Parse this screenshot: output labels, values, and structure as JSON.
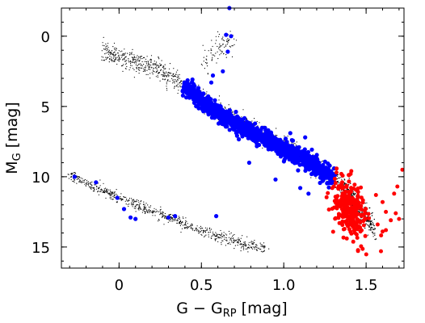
{
  "chart_data": {
    "type": "scatter",
    "xlabel_main": "G − G",
    "xlabel_sub": "RP",
    "xlabel_unit": " [mag]",
    "ylabel_main": "M",
    "ylabel_sub": "G",
    "ylabel_unit": " [mag]",
    "xlim": [
      -0.35,
      1.73
    ],
    "ylim": [
      16.5,
      -2.0
    ],
    "y_inverted": true,
    "x_ticks": [
      {
        "value": 0,
        "label": "0"
      },
      {
        "value": 0.5,
        "label": "0.5"
      },
      {
        "value": 1.0,
        "label": "1.0"
      },
      {
        "value": 1.5,
        "label": "1.5"
      }
    ],
    "y_ticks": [
      {
        "value": 0,
        "label": "0"
      },
      {
        "value": 5,
        "label": "5"
      },
      {
        "value": 10,
        "label": "10"
      },
      {
        "value": 15,
        "label": "15"
      }
    ],
    "grid": false,
    "legend": "none",
    "series": [
      {
        "color": "#000000",
        "marker": "tiny-dot",
        "description_of_distribution": "background field stars",
        "main_sequence_ridge": [
          [
            -0.1,
            1.1
          ],
          [
            0.1,
            1.8
          ],
          [
            0.25,
            2.4
          ],
          [
            0.4,
            3.6
          ],
          [
            0.6,
            5.3
          ],
          [
            0.8,
            6.6
          ],
          [
            1.0,
            7.8
          ],
          [
            1.2,
            9.2
          ],
          [
            1.35,
            10.5
          ],
          [
            1.45,
            12.0
          ],
          [
            1.55,
            13.8
          ]
        ],
        "white_dwarf_ridge": [
          [
            -0.3,
            9.9
          ],
          [
            -0.1,
            11.0
          ],
          [
            0.1,
            12.0
          ],
          [
            0.3,
            12.9
          ],
          [
            0.5,
            13.8
          ],
          [
            0.7,
            14.6
          ],
          [
            0.9,
            15.2
          ]
        ],
        "giant_branch": [
          [
            0.55,
            1.6
          ],
          [
            0.6,
            0.9
          ],
          [
            0.65,
            0.4
          ],
          [
            0.75,
            0.3
          ]
        ]
      },
      {
        "color": "#0000ff",
        "marker": "circle",
        "main_sequence_ridge": [
          [
            0.4,
            3.5
          ],
          [
            0.5,
            4.6
          ],
          [
            0.6,
            5.5
          ],
          [
            0.7,
            6.2
          ],
          [
            0.8,
            6.8
          ],
          [
            0.9,
            7.4
          ],
          [
            1.0,
            8.0
          ],
          [
            1.1,
            8.6
          ],
          [
            1.2,
            9.3
          ],
          [
            1.3,
            10.2
          ]
        ],
        "white_dwarfs": [
          [
            -0.27,
            10.0
          ],
          [
            -0.14,
            10.4
          ],
          [
            -0.01,
            11.5
          ],
          [
            0.03,
            12.3
          ],
          [
            0.07,
            12.9
          ],
          [
            0.1,
            13.0
          ],
          [
            0.3,
            12.9
          ],
          [
            0.34,
            12.8
          ],
          [
            0.59,
            12.8
          ]
        ],
        "isolated": [
          [
            0.67,
            -2.0
          ],
          [
            0.65,
            -0.1
          ],
          [
            0.68,
            0.0
          ],
          [
            0.66,
            1.1
          ],
          [
            0.57,
            2.8
          ],
          [
            0.63,
            2.5
          ],
          [
            0.56,
            3.3
          ],
          [
            0.79,
            9.0
          ],
          [
            0.95,
            10.2
          ],
          [
            1.1,
            10.8
          ],
          [
            1.15,
            11.2
          ],
          [
            1.05,
            7.4
          ],
          [
            1.13,
            7.2
          ],
          [
            1.04,
            6.9
          ]
        ]
      },
      {
        "color": "#ff0000",
        "marker": "circle",
        "cluster_center": [
          1.4,
          12.3
        ],
        "isolated": [
          [
            1.32,
            9.7
          ],
          [
            1.35,
            9.8
          ],
          [
            1.41,
            9.6
          ],
          [
            1.56,
            11.3
          ],
          [
            1.6,
            11.8
          ],
          [
            1.62,
            12.5
          ],
          [
            1.68,
            12.6
          ],
          [
            1.72,
            9.5
          ],
          [
            1.69,
            10.7
          ],
          [
            1.67,
            11.2
          ],
          [
            1.57,
            13.4
          ],
          [
            1.6,
            13.9
          ],
          [
            1.62,
            13.8
          ],
          [
            1.65,
            13.1
          ],
          [
            1.7,
            13.0
          ],
          [
            1.59,
            15.3
          ]
        ]
      }
    ]
  }
}
